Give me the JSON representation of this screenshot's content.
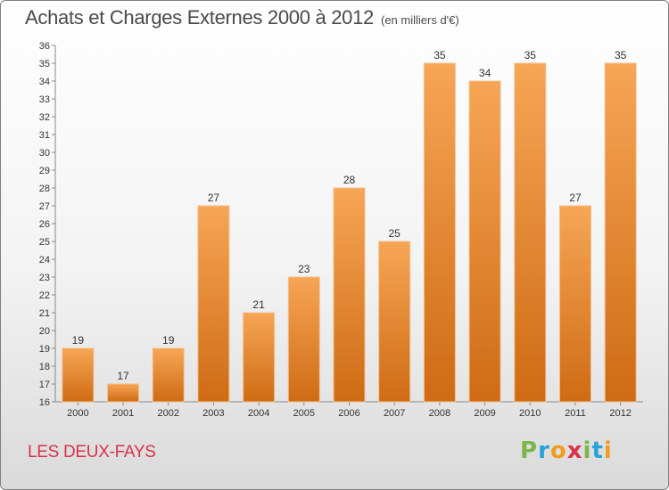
{
  "header": {
    "title": "Achats et Charges Externes 2000 à 2012",
    "unit": "(en milliers d'€)"
  },
  "footer": {
    "commune": "LES DEUX-FAYS",
    "logo": [
      "P",
      "r",
      "o",
      "x",
      "i",
      "t",
      "i"
    ]
  },
  "colors": {
    "bar_top": "#f6a655",
    "bar_bottom": "#cf6b14",
    "commune_text": "#d9334a",
    "logo_letters": [
      "#7ab648",
      "#2aa4d8",
      "#f29c1f",
      "#d9334a",
      "#7ab648",
      "#2aa4d8",
      "#f29c1f"
    ]
  },
  "chart_data": {
    "type": "bar",
    "title": "Achats et Charges Externes 2000 à 2012",
    "subtitle": "(en milliers d'€)",
    "categories": [
      "2000",
      "2001",
      "2002",
      "2003",
      "2004",
      "2005",
      "2006",
      "2007",
      "2008",
      "2009",
      "2010",
      "2011",
      "2012"
    ],
    "values": [
      19,
      17,
      19,
      27,
      21,
      23,
      28,
      25,
      35,
      34,
      35,
      27,
      35
    ],
    "ylim": [
      16,
      36
    ],
    "yticks": [
      16,
      17,
      18,
      19,
      20,
      21,
      22,
      23,
      24,
      25,
      26,
      27,
      28,
      29,
      30,
      31,
      32,
      33,
      34,
      35,
      36
    ],
    "grid": false,
    "data_labels": true
  }
}
